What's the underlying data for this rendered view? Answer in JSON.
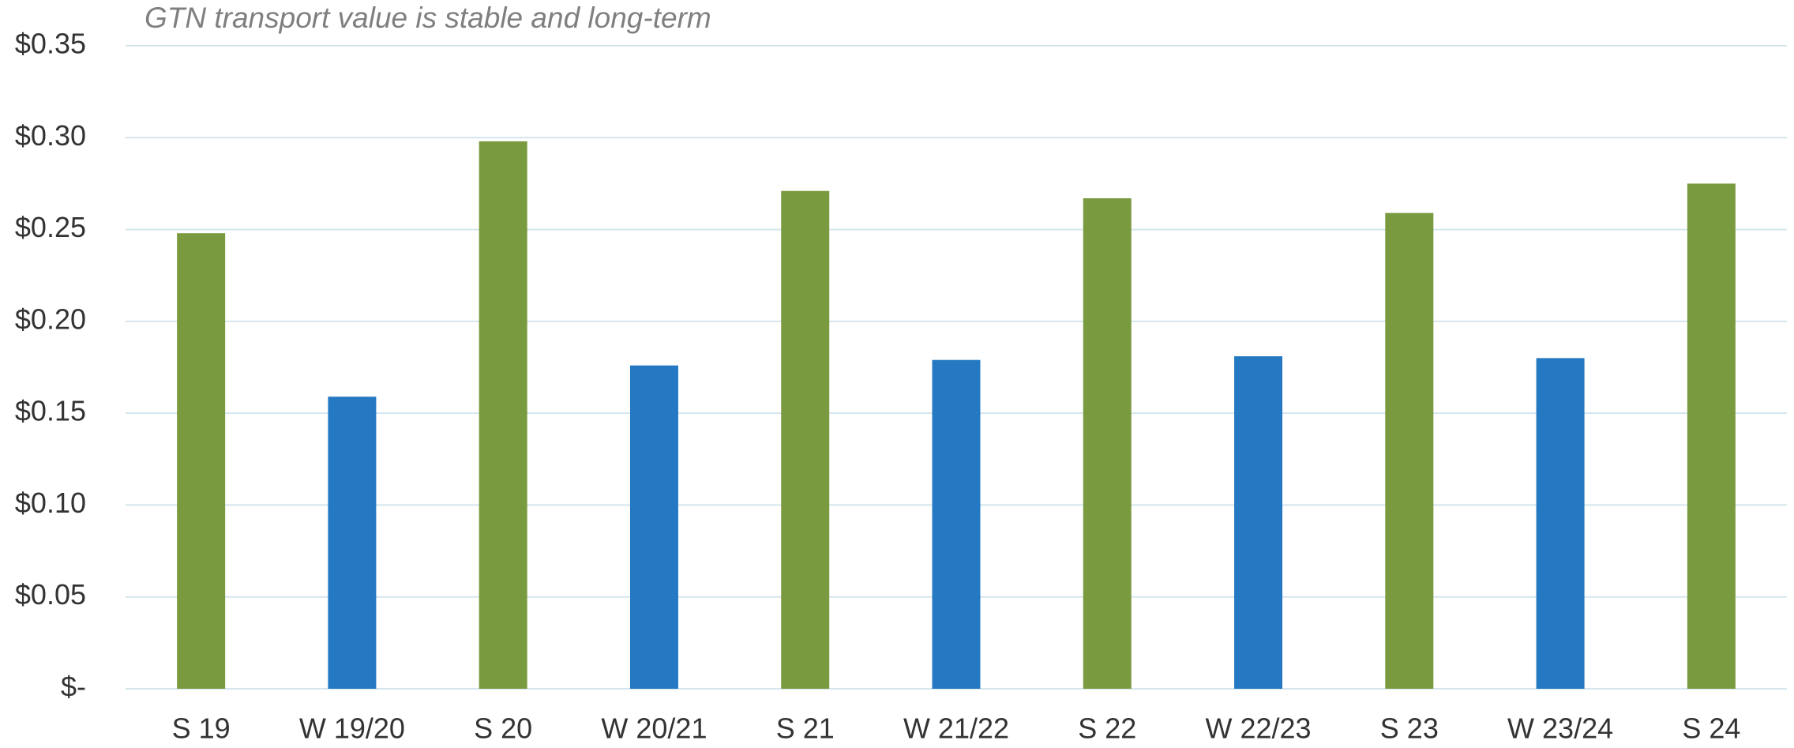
{
  "chart_data": {
    "type": "bar",
    "title": "GTN transport value is stable and long-term",
    "categories": [
      "S 19",
      "W 19/20",
      "S 20",
      "W 20/21",
      "S 21",
      "W 21/22",
      "S 22",
      "W 22/23",
      "S 23",
      "W 23/24",
      "S 24"
    ],
    "values": [
      0.248,
      0.159,
      0.298,
      0.176,
      0.271,
      0.179,
      0.267,
      0.181,
      0.259,
      0.18,
      0.275
    ],
    "colors": [
      "#7a9a3f",
      "#2479c2",
      "#7a9a3f",
      "#2479c2",
      "#7a9a3f",
      "#2479c2",
      "#7a9a3f",
      "#2479c2",
      "#7a9a3f",
      "#2479c2",
      "#7a9a3f"
    ],
    "ylim": [
      0,
      0.35
    ],
    "yticks": [
      {
        "value": 0,
        "label": "$-"
      },
      {
        "value": 0.05,
        "label": "$0.05"
      },
      {
        "value": 0.1,
        "label": "$0.10"
      },
      {
        "value": 0.15,
        "label": "$0.15"
      },
      {
        "value": 0.2,
        "label": "$0.20"
      },
      {
        "value": 0.25,
        "label": "$0.25"
      },
      {
        "value": 0.3,
        "label": "$0.30"
      },
      {
        "value": 0.35,
        "label": "$0.35"
      }
    ],
    "grid": true
  }
}
